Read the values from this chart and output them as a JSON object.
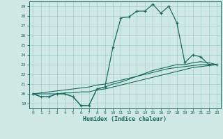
{
  "xlabel": "Humidex (Indice chaleur)",
  "bg_color": "#cfe8e4",
  "grid_color": "#9ecfca",
  "line_color": "#1a6b60",
  "xlim": [
    -0.5,
    23.5
  ],
  "ylim": [
    18.5,
    29.5
  ],
  "yticks": [
    19,
    20,
    21,
    22,
    23,
    24,
    25,
    26,
    27,
    28,
    29
  ],
  "xticks": [
    0,
    1,
    2,
    3,
    4,
    5,
    6,
    7,
    8,
    9,
    10,
    11,
    12,
    13,
    14,
    15,
    16,
    17,
    18,
    19,
    20,
    21,
    22,
    23
  ],
  "series": [
    [
      20.0,
      19.7,
      19.7,
      20.0,
      20.0,
      19.7,
      18.8,
      18.8,
      20.5,
      20.7,
      24.8,
      27.8,
      27.9,
      28.5,
      28.5,
      29.2,
      28.3,
      29.0,
      27.3,
      23.2,
      24.0,
      23.8,
      23.0,
      23.0
    ],
    [
      20.0,
      19.7,
      19.7,
      20.0,
      20.0,
      19.7,
      18.8,
      18.8,
      20.5,
      20.7,
      21.0,
      21.2,
      21.5,
      21.8,
      22.1,
      22.4,
      22.6,
      22.8,
      23.0,
      23.0,
      23.2,
      23.3,
      23.2,
      23.0
    ],
    [
      20.0,
      20.1,
      20.2,
      20.3,
      20.4,
      20.5,
      20.6,
      20.7,
      20.9,
      21.0,
      21.2,
      21.4,
      21.6,
      21.8,
      22.0,
      22.2,
      22.4,
      22.6,
      22.7,
      22.8,
      22.9,
      23.0,
      23.0,
      23.0
    ],
    [
      20.0,
      20.0,
      20.0,
      20.0,
      20.1,
      20.1,
      20.2,
      20.2,
      20.4,
      20.5,
      20.7,
      20.9,
      21.1,
      21.3,
      21.5,
      21.7,
      21.9,
      22.1,
      22.3,
      22.5,
      22.7,
      22.8,
      22.9,
      23.0
    ]
  ]
}
